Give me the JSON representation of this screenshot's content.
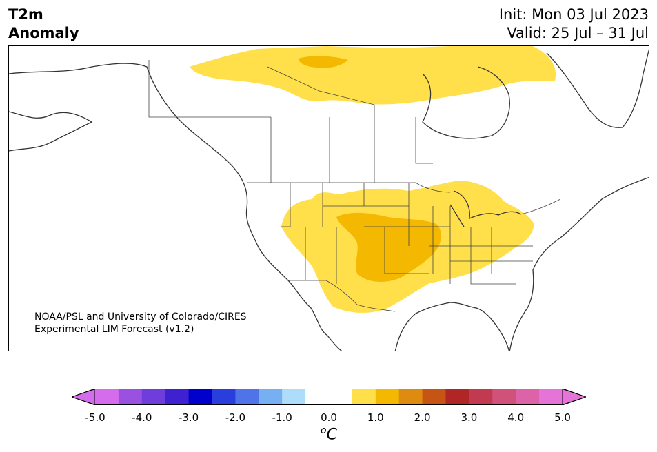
{
  "header": {
    "title_line1": "T2m",
    "title_line2": "Anomaly",
    "init": "Init: Mon 03 Jul 2023",
    "valid": "Valid: 25 Jul – 31 Jul"
  },
  "map": {
    "credit_line1": "NOAA/PSL and University of Colorado/CIRES",
    "credit_line2": "Experimental LIM Forecast (v1.2)",
    "anomaly_colors": {
      "plus_0_5_to_1_0": "#ffe04a",
      "plus_1_0_to_1_5": "#f4b800",
      "coastline": "#333333"
    }
  },
  "colorbar": {
    "unit_sup": "o",
    "unit": "C",
    "ticks": [
      "-5.0",
      "-4.0",
      "-3.0",
      "-2.0",
      "-1.0",
      "0.0",
      "1.0",
      "2.0",
      "3.0",
      "4.0",
      "5.0"
    ],
    "tick_values": [
      -5,
      -4,
      -3,
      -2,
      -1,
      0,
      1,
      2,
      3,
      4,
      5
    ],
    "below_color": "#d46cec",
    "above_color": "#e673d8",
    "bins": [
      {
        "from": -5.0,
        "to": -4.5,
        "color": "#d46cec"
      },
      {
        "from": -4.5,
        "to": -4.0,
        "color": "#9a50e0"
      },
      {
        "from": -4.0,
        "to": -3.5,
        "color": "#6e3ddc"
      },
      {
        "from": -3.5,
        "to": -3.0,
        "color": "#3f21d2"
      },
      {
        "from": -3.0,
        "to": -2.5,
        "color": "#0000cc"
      },
      {
        "from": -2.5,
        "to": -2.0,
        "color": "#2a3ddd"
      },
      {
        "from": -2.0,
        "to": -1.5,
        "color": "#4f73e8"
      },
      {
        "from": -1.5,
        "to": -1.0,
        "color": "#77b0f2"
      },
      {
        "from": -1.0,
        "to": -0.5,
        "color": "#aedcfb"
      },
      {
        "from": -0.5,
        "to": 0.0,
        "color": "#ffffff"
      },
      {
        "from": 0.0,
        "to": 0.5,
        "color": "#ffffff"
      },
      {
        "from": 0.5,
        "to": 1.0,
        "color": "#ffe04a"
      },
      {
        "from": 1.0,
        "to": 1.5,
        "color": "#f4b800"
      },
      {
        "from": 1.5,
        "to": 2.0,
        "color": "#de8c10"
      },
      {
        "from": 2.0,
        "to": 2.5,
        "color": "#c65415"
      },
      {
        "from": 2.5,
        "to": 3.0,
        "color": "#b02525"
      },
      {
        "from": 3.0,
        "to": 3.5,
        "color": "#c23a50"
      },
      {
        "from": 3.5,
        "to": 4.0,
        "color": "#d0527a"
      },
      {
        "from": 4.0,
        "to": 4.5,
        "color": "#dd63a8"
      },
      {
        "from": 4.5,
        "to": 5.0,
        "color": "#e673d8"
      }
    ]
  }
}
